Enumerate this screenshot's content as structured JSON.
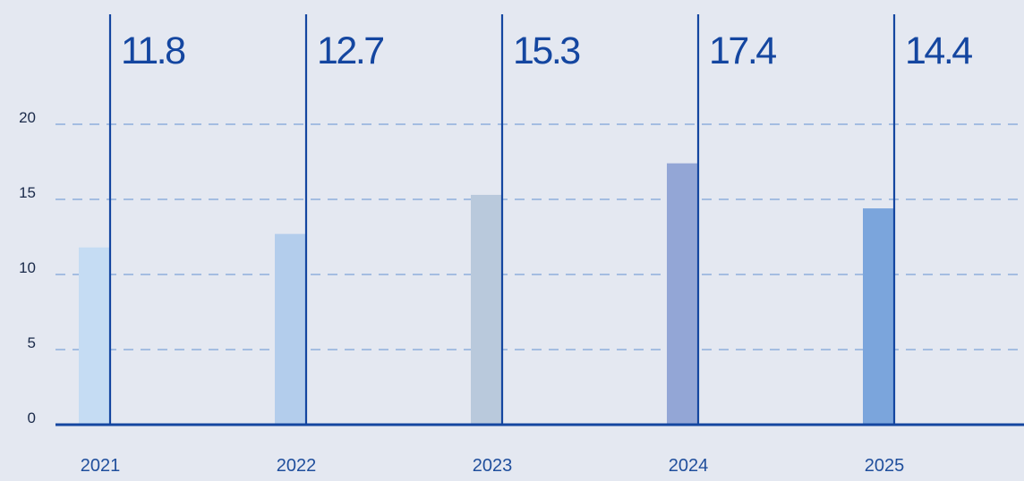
{
  "chart_data": {
    "type": "bar",
    "title": "",
    "xlabel": "",
    "ylabel": "",
    "categories": [
      "2021",
      "2022",
      "2023",
      "2024",
      "2025"
    ],
    "values": [
      11.8,
      12.7,
      15.3,
      17.4,
      14.4
    ],
    "data_labels": [
      "11.8",
      "12.7",
      "15.3",
      "17.4",
      "14.4"
    ],
    "bar_colors": [
      "#c5dcf3",
      "#b3cdec",
      "#b9c9dc",
      "#93a6d6",
      "#7ba5dc"
    ],
    "y_ticks": [
      0,
      5,
      10,
      15,
      20
    ],
    "y_tick_labels": [
      "0",
      "5",
      "10",
      "15",
      "20"
    ],
    "ylim": [
      0,
      20
    ],
    "grid": true,
    "legend": "none"
  },
  "colors": {
    "background": "#e4e8f1",
    "accent": "#1446a0",
    "gridline": "#7ea3d8"
  }
}
